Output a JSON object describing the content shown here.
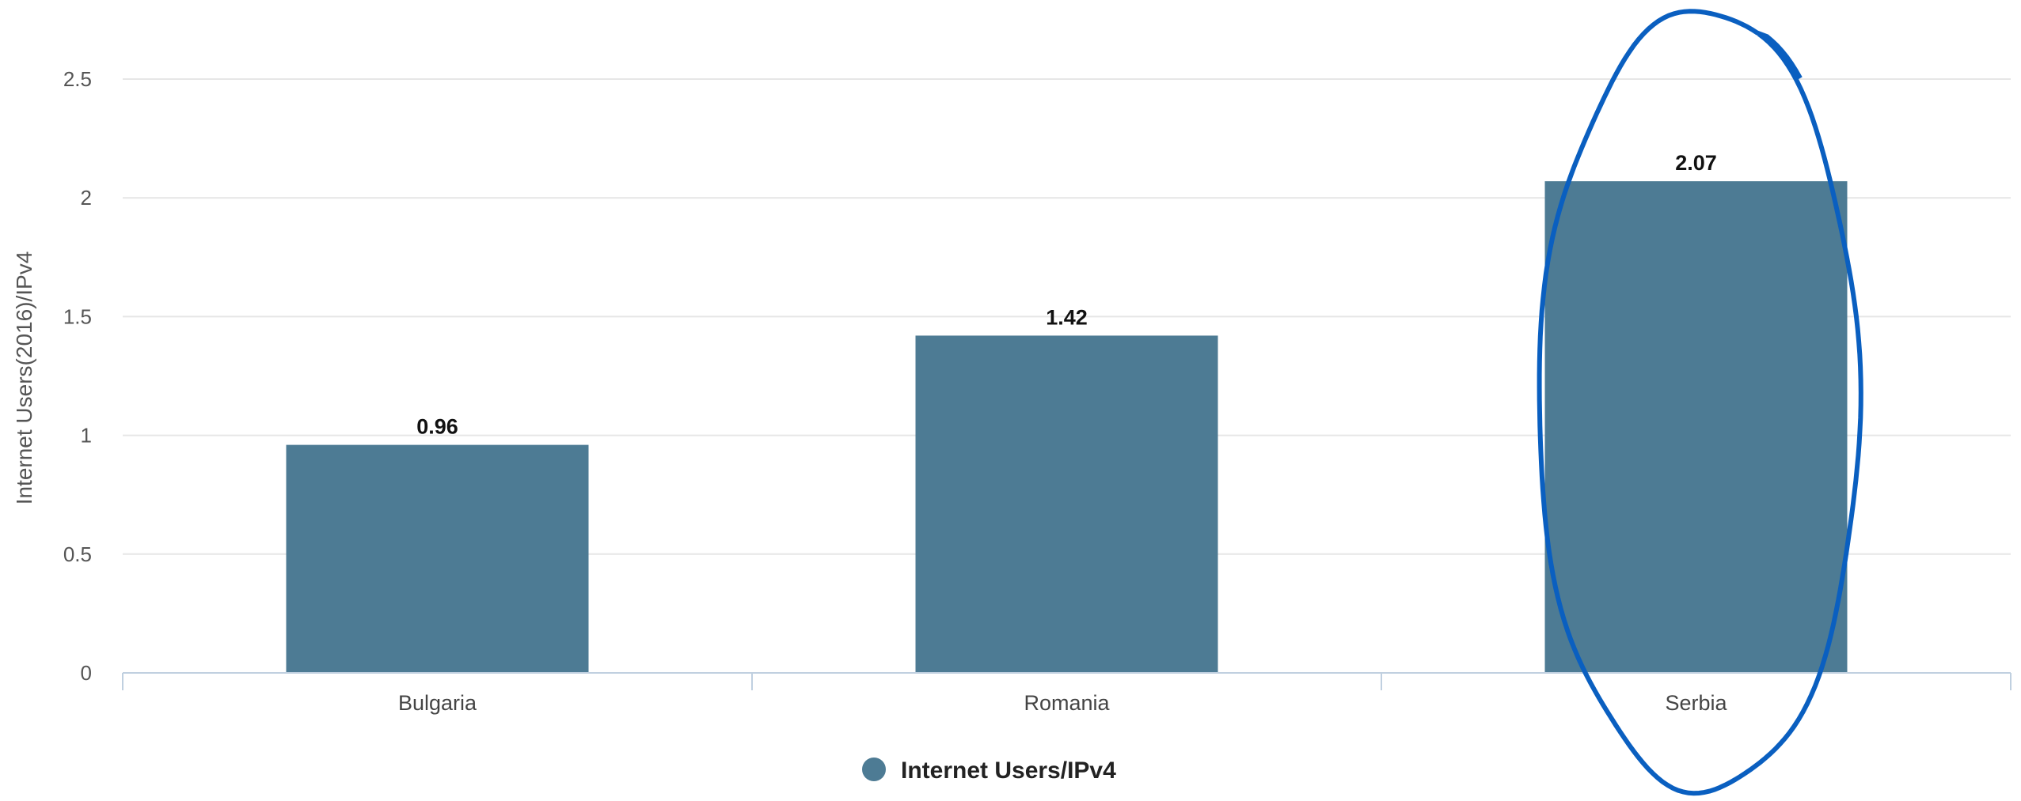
{
  "chart_data": {
    "type": "bar",
    "categories": [
      "Bulgaria",
      "Romania",
      "Serbia"
    ],
    "series": [
      {
        "name": "Internet Users/IPv4",
        "values": [
          0.96,
          1.42,
          2.07
        ],
        "color": "#4d7b94"
      }
    ],
    "data_labels": [
      "0.96",
      "1.42",
      "2.07"
    ],
    "title": "",
    "xlabel": "",
    "ylabel": "Internet Users(2016)/IPv4",
    "ylim": [
      0,
      2.5
    ],
    "yticks": [
      0,
      0.5,
      1,
      1.5,
      2,
      2.5
    ],
    "ytick_labels": [
      "0",
      "0.5",
      "1",
      "1.5",
      "2",
      "2.5"
    ],
    "grid": true,
    "legend": {
      "placement": "bottom-center",
      "marker": "circle"
    },
    "highlight": {
      "category": "Serbia",
      "shape": "hand-drawn ellipse",
      "color": "#0a5fc0"
    },
    "colors": {
      "gridline": "#e6e6e6",
      "axis": "#c0d0e0"
    }
  }
}
